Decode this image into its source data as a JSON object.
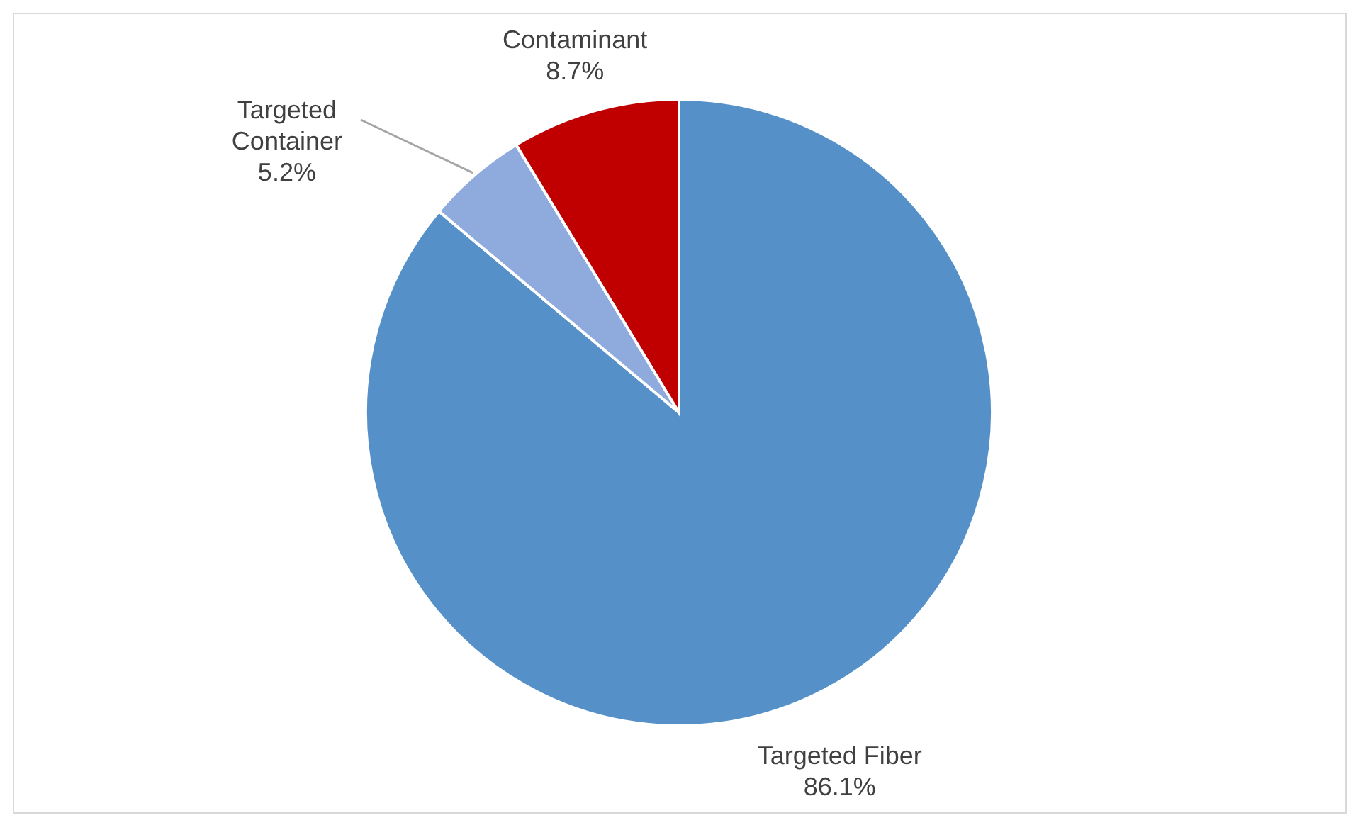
{
  "chart_data": {
    "type": "pie",
    "categories": [
      "Targeted Fiber",
      "Targeted Container",
      "Contaminant"
    ],
    "values": [
      86.1,
      5.2,
      8.7
    ],
    "colors": [
      "#5591c8",
      "#8faadc",
      "#c00000"
    ],
    "value_labels": [
      "86.1%",
      "5.2%",
      "8.7%"
    ]
  }
}
